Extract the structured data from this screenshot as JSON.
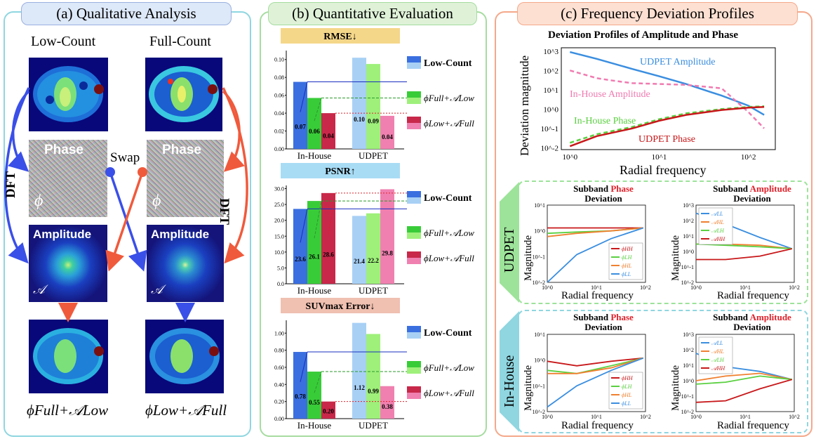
{
  "panel_a": {
    "title": "(a) Qualitative Analysis",
    "col_left": "Low-Count",
    "col_right": "Full-Count",
    "phase_label": "Phase",
    "phase_symbol": "ϕ",
    "amp_label": "Amplitude",
    "amp_symbol": "𝒜",
    "dft_label": "DFT",
    "swap_label": "Swap",
    "result_left": "ϕFull+𝒜Low",
    "result_right": "ϕLow+𝒜Full",
    "colors": {
      "blue_arrow": "#3a4fe8",
      "orange_arrow": "#f05a3c",
      "border": "#8fd6e0",
      "title_bg": "#dde8f8"
    }
  },
  "panel_b": {
    "title": "(b) Quantitative Evaluation",
    "legend": [
      "Low-Count",
      "ϕFull+𝒜Low",
      "ϕLow+𝒜Full"
    ],
    "colors": {
      "border": "#a6dca0",
      "title_bg": "#dff2d8"
    }
  },
  "panel_c": {
    "title": "(c) Frequency Deviation Profiles",
    "top_title": "Deviation Profiles of Amplitude and Phase",
    "top_xlabel": "Radial frequency",
    "top_ylabel": "Deviation magnitude",
    "top_annotations": [
      "UDPET Amplitude",
      "In-House Amplitude",
      "In-House Phase",
      "UDPET Phase"
    ],
    "row_udpet": "UDPET",
    "row_inhouse": "In-House",
    "sub_phase_title_a": "Subband",
    "sub_phase_title_b": "Phase",
    "sub_amp_title_b": "Amplitude",
    "sub_title_c": "Deviation",
    "sub_ylabel": "Magnitude",
    "sub_xlabel": "Radial frequency",
    "phase_legend": [
      "ϕHH",
      "ϕLH",
      "ϕHL",
      "ϕLL"
    ],
    "amp_legend": [
      "𝒜LL",
      "𝒜HL",
      "𝒜LH",
      "𝒜HH"
    ],
    "colors": {
      "border": "#f5a88a",
      "title_bg": "#fde0d2",
      "udpet_box": "#9de39a",
      "inhouse_box": "#8fd6e0"
    }
  },
  "chart_data": [
    {
      "type": "bar",
      "title": "RMSE↓",
      "categories": [
        "In-House",
        "UDPET"
      ],
      "ylim": [
        0,
        0.11
      ],
      "yticks": [
        "0.00",
        "0.02",
        "0.04",
        "0.06",
        "0.08",
        "0.10"
      ],
      "series": [
        {
          "name": "Low-Count",
          "values": [
            0.075,
            0.102
          ],
          "labels": [
            "0.07",
            "0.10"
          ]
        },
        {
          "name": "ϕFull+𝒜Low",
          "values": [
            0.057,
            0.095
          ],
          "labels": [
            "0.06",
            "0.09"
          ]
        },
        {
          "name": "ϕLow+𝒜Full",
          "values": [
            0.04,
            0.037
          ],
          "labels": [
            "0.04",
            "0.04"
          ]
        }
      ]
    },
    {
      "type": "bar",
      "title": "PSNR↑",
      "categories": [
        "In-House",
        "UDPET"
      ],
      "ylim": [
        0,
        31
      ],
      "yticks": [
        "0.0",
        "5.0",
        "10.0",
        "15.0",
        "20.0",
        "25.0",
        "30.0"
      ],
      "series": [
        {
          "name": "Low-Count",
          "values": [
            23.6,
            21.4
          ],
          "labels": [
            "23.6",
            "21.4"
          ]
        },
        {
          "name": "ϕFull+𝒜Low",
          "values": [
            26.1,
            22.2
          ],
          "labels": [
            "26.1",
            "22.2"
          ]
        },
        {
          "name": "ϕLow+𝒜Full",
          "values": [
            28.6,
            29.8
          ],
          "labels": [
            "28.6",
            "29.8"
          ]
        }
      ]
    },
    {
      "type": "bar",
      "title": "SUVmax Error↓",
      "categories": [
        "In-House",
        "UDPET"
      ],
      "ylim": [
        0,
        1.15
      ],
      "yticks": [
        "0.00",
        "0.20",
        "0.40",
        "0.60",
        "0.80",
        "1.00"
      ],
      "series": [
        {
          "name": "Low-Count",
          "values": [
            0.78,
            1.12
          ],
          "labels": [
            "0.78",
            "1.12"
          ]
        },
        {
          "name": "ϕFull+𝒜Low",
          "values": [
            0.55,
            0.99
          ],
          "labels": [
            "0.55",
            "0.99"
          ]
        },
        {
          "name": "ϕLow+𝒜Full",
          "values": [
            0.2,
            0.38
          ],
          "labels": [
            "0.20",
            "0.38"
          ]
        }
      ]
    },
    {
      "type": "line",
      "title": "Deviation Profiles of Amplitude and Phase",
      "xscale": "log",
      "yscale": "log",
      "xlim": [
        0.8,
        200
      ],
      "ylim": [
        0.008,
        1500
      ],
      "xticks": [
        "10^0",
        "10^1",
        "10^2"
      ],
      "yticks": [
        "10^-2",
        "10^-1",
        "10^0",
        "10^1",
        "10^2",
        "10^3"
      ],
      "series": [
        {
          "name": "UDPET Amplitude",
          "x": [
            1,
            2,
            5,
            10,
            20,
            50,
            100,
            150
          ],
          "y": [
            900,
            400,
            120,
            50,
            20,
            5,
            1.5,
            0.5
          ]
        },
        {
          "name": "In-House Amplitude",
          "x": [
            1,
            2,
            3,
            5,
            10,
            20,
            50,
            100,
            150
          ],
          "y": [
            100,
            40,
            30,
            22,
            20,
            18,
            12,
            0.7,
            0.1
          ]
        },
        {
          "name": "In-House Phase",
          "x": [
            1,
            2,
            5,
            10,
            20,
            50,
            100,
            150
          ],
          "y": [
            0.018,
            0.05,
            0.12,
            0.3,
            0.6,
            1.0,
            1.3,
            1.4
          ]
        },
        {
          "name": "UDPET Phase",
          "x": [
            1,
            2,
            5,
            10,
            20,
            50,
            100,
            150
          ],
          "y": [
            0.012,
            0.04,
            0.1,
            0.25,
            0.5,
            0.9,
            1.2,
            1.3
          ]
        }
      ]
    }
  ]
}
